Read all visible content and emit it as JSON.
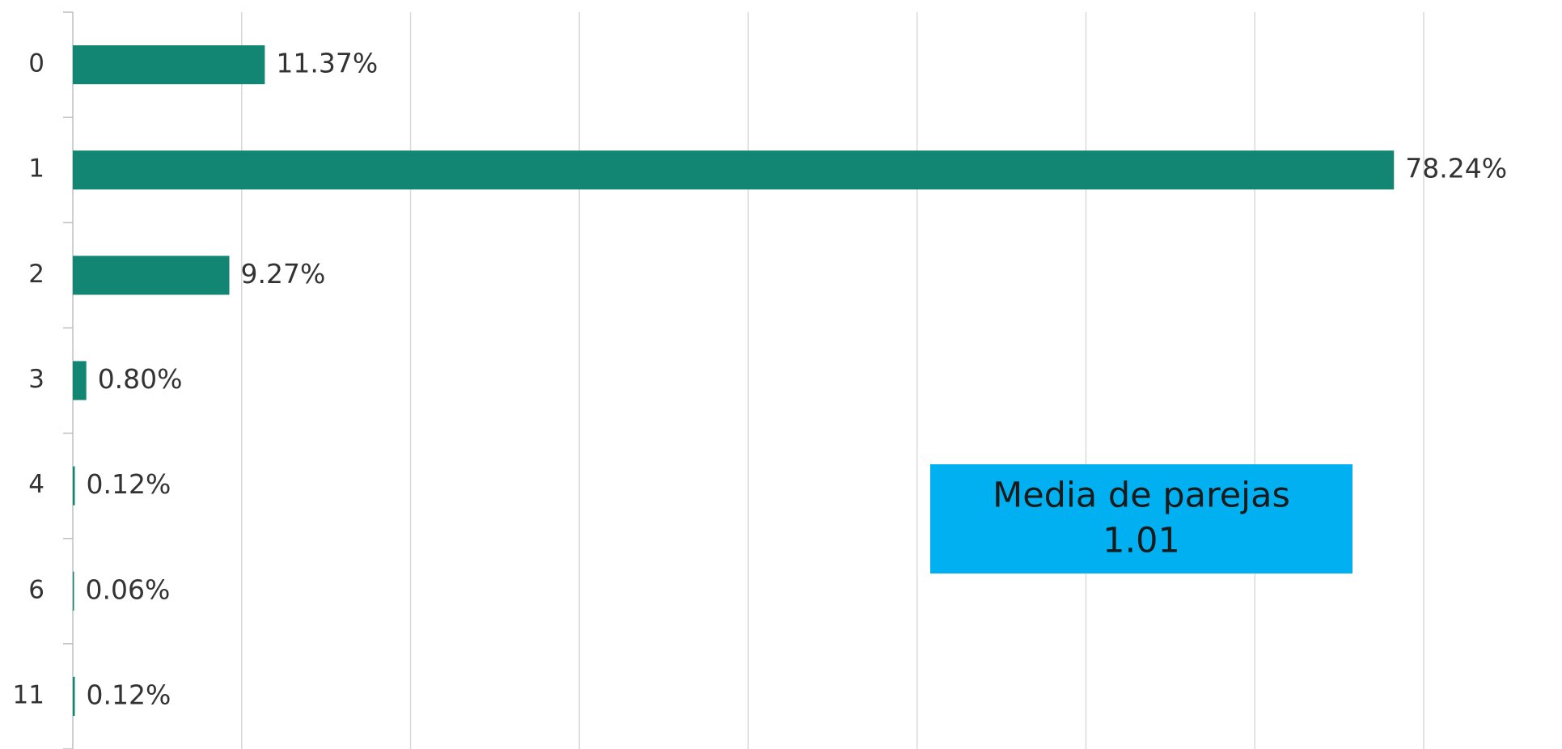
{
  "chart_data": {
    "type": "hbar",
    "categories": [
      "0",
      "1",
      "2",
      "3",
      "4",
      "6",
      "11"
    ],
    "values": [
      11.37,
      78.24,
      9.27,
      0.8,
      0.12,
      0.06,
      0.12
    ],
    "value_labels": [
      "11.37%",
      "78.24%",
      "9.27%",
      "0.80%",
      "0.12%",
      "0.06%",
      "0.12%"
    ],
    "color": "#138673",
    "xlim": [
      0,
      88
    ],
    "xticks": [
      0,
      10,
      20,
      30,
      40,
      50,
      60,
      70,
      80
    ],
    "grid": true,
    "annotation": {
      "lines": [
        "Media de parejas",
        "1.01"
      ],
      "color": "#00b0f0"
    }
  }
}
